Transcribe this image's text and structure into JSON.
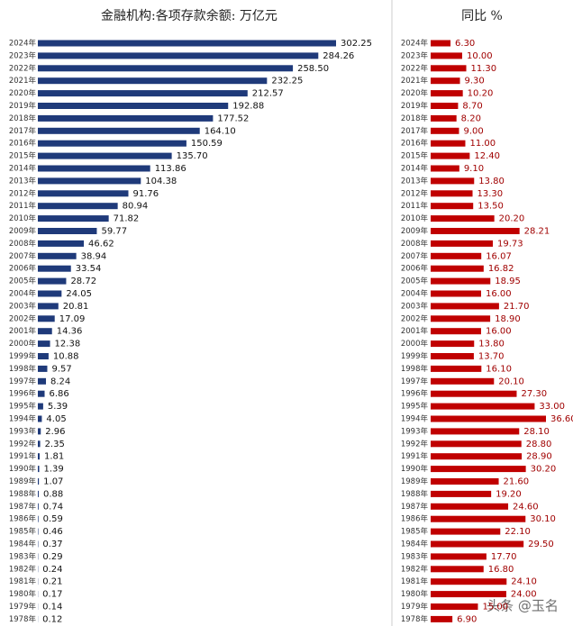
{
  "chart_data": [
    {
      "type": "bar",
      "title": "金融机构:各项存款余额: 万亿元",
      "color": "#1f3a7a",
      "categories": [
        "2024年",
        "2023年",
        "2022年",
        "2021年",
        "2020年",
        "2019年",
        "2018年",
        "2017年",
        "2016年",
        "2015年",
        "2014年",
        "2013年",
        "2012年",
        "2011年",
        "2010年",
        "2009年",
        "2008年",
        "2007年",
        "2006年",
        "2005年",
        "2004年",
        "2003年",
        "2002年",
        "2001年",
        "2000年",
        "1999年",
        "1998年",
        "1997年",
        "1996年",
        "1995年",
        "1994年",
        "1993年",
        "1992年",
        "1991年",
        "1990年",
        "1989年",
        "1988年",
        "1987年",
        "1986年",
        "1985年",
        "1984年",
        "1983年",
        "1982年",
        "1981年",
        "1980年",
        "1979年",
        "1978年"
      ],
      "values": [
        302.25,
        284.26,
        258.5,
        232.25,
        212.57,
        192.88,
        177.52,
        164.1,
        150.59,
        135.7,
        113.86,
        104.38,
        91.76,
        80.94,
        71.82,
        59.77,
        46.62,
        38.94,
        33.54,
        28.72,
        24.05,
        20.81,
        17.09,
        14.36,
        12.38,
        10.88,
        9.57,
        8.24,
        6.86,
        5.39,
        4.05,
        2.96,
        2.35,
        1.81,
        1.39,
        1.07,
        0.88,
        0.74,
        0.59,
        0.46,
        0.37,
        0.29,
        0.24,
        0.21,
        0.17,
        0.14,
        0.12
      ],
      "value_labels": [
        "302.25",
        "284.26",
        "258.50",
        "232.25",
        "212.57",
        "192.88",
        "177.52",
        "164.10",
        "150.59",
        "135.70",
        "113.86",
        "104.38",
        "91.76",
        "80.94",
        "71.82",
        "59.77",
        "46.62",
        "38.94",
        "33.54",
        "28.72",
        "24.05",
        "20.81",
        "17.09",
        "14.36",
        "12.38",
        "10.88",
        "9.57",
        "8.24",
        "6.86",
        "5.39",
        "4.05",
        "2.96",
        "2.35",
        "1.81",
        "1.39",
        "1.07",
        "0.88",
        "0.74",
        "0.59",
        "0.46",
        "0.37",
        "0.29",
        "0.24",
        "0.21",
        "0.17",
        "0.14",
        "0.12"
      ]
    },
    {
      "type": "bar",
      "title": "同比 %",
      "color": "#c00000",
      "categories": [
        "2024年",
        "2023年",
        "2022年",
        "2021年",
        "2020年",
        "2019年",
        "2018年",
        "2017年",
        "2016年",
        "2015年",
        "2014年",
        "2013年",
        "2012年",
        "2011年",
        "2010年",
        "2009年",
        "2008年",
        "2007年",
        "2006年",
        "2005年",
        "2004年",
        "2003年",
        "2002年",
        "2001年",
        "2000年",
        "1999年",
        "1998年",
        "1997年",
        "1996年",
        "1995年",
        "1994年",
        "1993年",
        "1992年",
        "1991年",
        "1990年",
        "1989年",
        "1988年",
        "1987年",
        "1986年",
        "1985年",
        "1984年",
        "1983年",
        "1982年",
        "1981年",
        "1980年",
        "1979年",
        "1978年"
      ],
      "values": [
        6.3,
        10,
        11.3,
        9.3,
        10.2,
        8.7,
        8.2,
        9,
        11,
        12.4,
        9.1,
        13.8,
        13.3,
        13.5,
        20.2,
        28.21,
        19.73,
        16.07,
        16.82,
        18.95,
        16,
        21.7,
        18.9,
        16,
        13.8,
        13.7,
        16.1,
        20.1,
        27.3,
        33,
        36.6,
        28.1,
        28.8,
        28.9,
        30.2,
        21.6,
        19.2,
        24.6,
        30.1,
        22.1,
        29.5,
        17.7,
        16.8,
        24.1,
        24,
        15,
        6.9
      ],
      "value_labels": [
        "6.30",
        "10.00",
        "11.30",
        "9.30",
        "10.20",
        "8.70",
        "8.20",
        "9.00",
        "11.00",
        "12.40",
        "9.10",
        "13.80",
        "13.30",
        "13.50",
        "20.20",
        "28.21",
        "19.73",
        "16.07",
        "16.82",
        "18.95",
        "16.00",
        "21.70",
        "18.90",
        "16.00",
        "13.80",
        "13.70",
        "16.10",
        "20.10",
        "27.30",
        "33.00",
        "36.60",
        "28.10",
        "28.80",
        "28.90",
        "30.20",
        "21.60",
        "19.20",
        "24.60",
        "30.10",
        "22.10",
        "29.50",
        "17.70",
        "16.80",
        "24.10",
        "24.00",
        "15.00",
        "6.90"
      ]
    }
  ],
  "watermark": "头条 @玉名"
}
